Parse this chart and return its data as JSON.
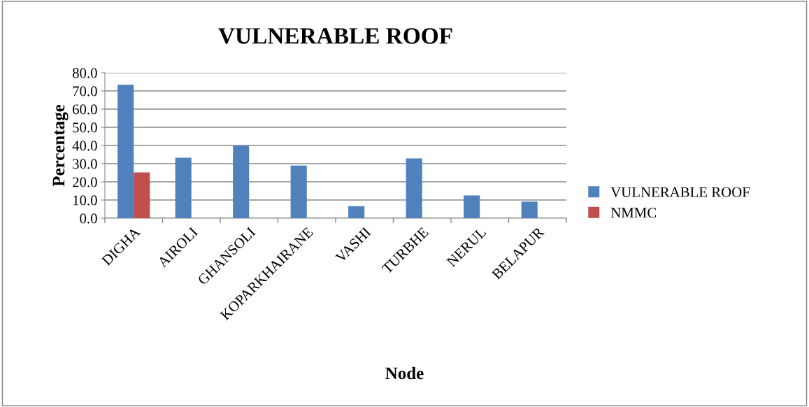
{
  "chart_data": {
    "type": "bar",
    "title": "VULNERABLE ROOF",
    "xlabel": "Node",
    "ylabel": "Percentage",
    "categories": [
      "DIGHA",
      "AIROLI",
      "GHANSOLI",
      "KOPARKHAIRANE",
      "VASHI",
      "TURBHE",
      "NERUL",
      "BELAPUR"
    ],
    "series": [
      {
        "name": "VULNERABLE ROOF",
        "color": "#4f81bd",
        "values": [
          73.4,
          33.3,
          39.9,
          28.9,
          6.6,
          32.9,
          12.5,
          9.1
        ]
      },
      {
        "name": "NMMC",
        "color": "#c0504d",
        "values": [
          25.2,
          null,
          null,
          null,
          null,
          null,
          null,
          null
        ]
      }
    ],
    "ylim": [
      0,
      80
    ],
    "yticks": [
      {
        "value": 0,
        "label": "0.0"
      },
      {
        "value": 10,
        "label": "10.0"
      },
      {
        "value": 20,
        "label": "20.0"
      },
      {
        "value": 30,
        "label": "30.0"
      },
      {
        "value": 40,
        "label": "40.0"
      },
      {
        "value": 50,
        "label": "50.0"
      },
      {
        "value": 60,
        "label": "60.0"
      },
      {
        "value": 70,
        "label": "70.0"
      },
      {
        "value": 80,
        "label": "80.0"
      }
    ],
    "grid": "y",
    "legend": "right"
  }
}
